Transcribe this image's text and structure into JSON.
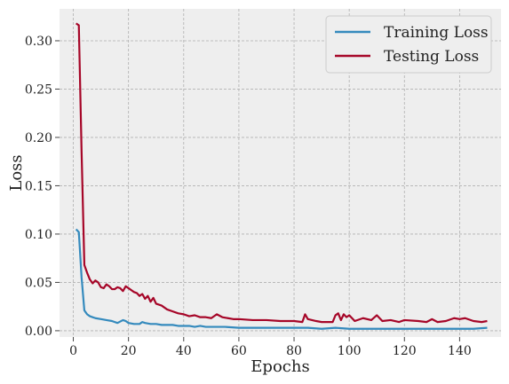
{
  "chart_data": {
    "type": "line",
    "title": "",
    "xlabel": "Epochs",
    "ylabel": "Loss",
    "xlim": [
      -5,
      155
    ],
    "ylim": [
      -0.0065,
      0.333
    ],
    "xticks": [
      0,
      20,
      40,
      60,
      80,
      100,
      120,
      140
    ],
    "yticks": [
      0.0,
      0.05,
      0.1,
      0.15,
      0.2,
      0.25,
      0.3
    ],
    "ytick_labels": [
      "0.00",
      "0.05",
      "0.10",
      "0.15",
      "0.20",
      "0.25",
      "0.30"
    ],
    "grid": true,
    "legend_position": "top-right",
    "colors": {
      "plot_background": "#eeeeee",
      "training": "#348abd",
      "testing": "#a60628"
    },
    "series": [
      {
        "name": "Training Loss",
        "x": [
          1,
          2,
          3,
          4,
          5,
          6,
          7,
          8,
          10,
          12,
          14,
          16,
          18,
          19,
          20,
          22,
          24,
          25,
          26,
          28,
          30,
          32,
          34,
          36,
          38,
          40,
          42,
          44,
          46,
          48,
          50,
          52,
          55,
          60,
          65,
          70,
          75,
          80,
          85,
          90,
          95,
          100,
          105,
          110,
          115,
          120,
          125,
          130,
          135,
          140,
          145,
          150
        ],
        "y": [
          0.105,
          0.102,
          0.055,
          0.021,
          0.017,
          0.015,
          0.014,
          0.013,
          0.012,
          0.011,
          0.01,
          0.008,
          0.011,
          0.01,
          0.008,
          0.007,
          0.007,
          0.009,
          0.008,
          0.007,
          0.007,
          0.006,
          0.006,
          0.006,
          0.005,
          0.005,
          0.005,
          0.004,
          0.005,
          0.004,
          0.004,
          0.004,
          0.004,
          0.003,
          0.003,
          0.003,
          0.003,
          0.003,
          0.003,
          0.002,
          0.003,
          0.002,
          0.002,
          0.002,
          0.002,
          0.002,
          0.002,
          0.002,
          0.002,
          0.002,
          0.002,
          0.003
        ]
      },
      {
        "name": "Testing Loss",
        "x": [
          1,
          2,
          3,
          4,
          5,
          6,
          7,
          8,
          9,
          10,
          11,
          12,
          13,
          14,
          15,
          16,
          17,
          18,
          19,
          20,
          21,
          22,
          23,
          24,
          25,
          26,
          27,
          28,
          29,
          30,
          32,
          34,
          36,
          38,
          40,
          42,
          44,
          46,
          48,
          50,
          52,
          54,
          56,
          58,
          60,
          65,
          70,
          75,
          80,
          83,
          84,
          85,
          88,
          90,
          94,
          95,
          96,
          97,
          98,
          99,
          100,
          102,
          105,
          108,
          110,
          112,
          115,
          118,
          120,
          125,
          128,
          130,
          132,
          135,
          138,
          140,
          142,
          145,
          148,
          150
        ],
        "y": [
          0.318,
          0.316,
          0.185,
          0.068,
          0.06,
          0.053,
          0.049,
          0.052,
          0.05,
          0.045,
          0.044,
          0.048,
          0.046,
          0.043,
          0.043,
          0.045,
          0.044,
          0.041,
          0.046,
          0.044,
          0.042,
          0.04,
          0.039,
          0.036,
          0.038,
          0.033,
          0.036,
          0.03,
          0.034,
          0.028,
          0.026,
          0.022,
          0.02,
          0.018,
          0.017,
          0.015,
          0.016,
          0.014,
          0.014,
          0.013,
          0.017,
          0.014,
          0.013,
          0.012,
          0.012,
          0.011,
          0.011,
          0.01,
          0.01,
          0.009,
          0.017,
          0.012,
          0.01,
          0.009,
          0.009,
          0.016,
          0.018,
          0.011,
          0.017,
          0.014,
          0.016,
          0.01,
          0.013,
          0.011,
          0.016,
          0.01,
          0.011,
          0.009,
          0.011,
          0.01,
          0.009,
          0.012,
          0.009,
          0.01,
          0.013,
          0.012,
          0.013,
          0.01,
          0.009,
          0.01
        ]
      }
    ]
  }
}
